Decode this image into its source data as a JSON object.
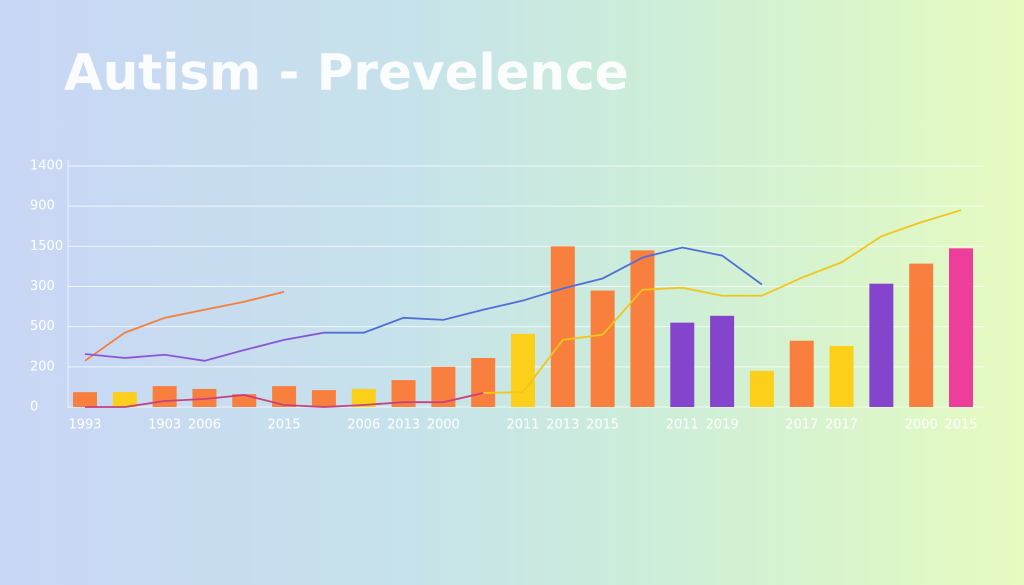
{
  "chart_data": {
    "type": "bar",
    "title": "Autism - Prevelence",
    "categories": [
      "1993",
      null,
      "1903",
      "2006",
      null,
      "2015",
      null,
      "2006",
      "2013",
      "2000",
      null,
      "2011",
      "2013",
      "2015",
      null,
      "2011",
      "2019",
      null,
      "2017",
      "2017",
      null,
      "2000",
      "2015"
    ],
    "values": [
      0.37,
      0.37,
      0.52,
      0.45,
      0.32,
      0.52,
      0.42,
      0.45,
      0.67,
      1.0,
      1.22,
      1.82,
      4.0,
      2.9,
      3.9,
      2.1,
      2.27,
      0.9,
      1.65,
      1.52,
      3.07,
      3.57,
      3.95
    ],
    "colors": [
      "#f97f3f",
      "#fbcf1a",
      "#f97f3f",
      "#f97f3f",
      "#f97f3f",
      "#f97f3f",
      "#f97f3f",
      "#fbcf1a",
      "#f97f3f",
      "#f97f3f",
      "#f97f3f",
      "#fbcf1a",
      "#f97f3f",
      "#f97f3f",
      "#f97f3f",
      "#8445cc",
      "#8445cc",
      "#fbcf1a",
      "#f97f3f",
      "#fbcf1a",
      "#8445cc",
      "#f97f3f",
      "#ec3e9a"
    ],
    "lines": [
      {
        "color": "#f47f3a",
        "values": [
          1.15,
          1.85,
          2.22,
          2.42,
          2.62,
          2.87,
          null,
          null,
          null,
          null,
          null,
          null,
          null,
          null,
          null,
          null,
          null,
          null,
          null,
          null,
          null,
          null,
          null
        ]
      },
      {
        "color": "#8a55d6",
        "values": [
          1.32,
          1.22,
          1.3,
          1.15,
          1.42,
          1.67,
          1.85,
          null,
          null,
          null,
          null,
          null,
          null,
          null,
          null,
          null,
          null,
          null,
          null,
          null,
          null,
          null,
          null
        ]
      },
      {
        "color": "#4f6fd8",
        "values": [
          null,
          null,
          null,
          null,
          null,
          null,
          1.85,
          1.85,
          2.22,
          2.17,
          2.42,
          2.65,
          2.95,
          3.2,
          3.72,
          3.97,
          3.77,
          3.05,
          null,
          null,
          null,
          null,
          null
        ]
      },
      {
        "color": "#f2c51a",
        "values": [
          null,
          null,
          null,
          null,
          null,
          null,
          null,
          null,
          null,
          null,
          0.35,
          0.37,
          1.67,
          1.8,
          2.92,
          2.97,
          2.77,
          2.77,
          3.22,
          3.6,
          4.25,
          4.6,
          4.9
        ]
      },
      {
        "color": "#c8407e",
        "values": [
          0,
          0,
          0.15,
          0.2,
          0.3,
          0.05,
          0,
          0.05,
          0.12,
          0.12,
          0.35,
          null,
          null,
          null,
          null,
          null,
          null,
          null,
          null,
          null,
          null,
          null,
          null
        ]
      }
    ],
    "ylim": [
      0,
      6
    ],
    "yticks": [
      {
        "value": 0,
        "label": "0"
      },
      {
        "value": 1,
        "label": "200"
      },
      {
        "value": 2,
        "label": "500"
      },
      {
        "value": 3,
        "label": "300"
      },
      {
        "value": 4,
        "label": "1500"
      },
      {
        "value": 5,
        "label": "900"
      },
      {
        "value": 6,
        "label": "1400"
      }
    ],
    "grid": true
  }
}
